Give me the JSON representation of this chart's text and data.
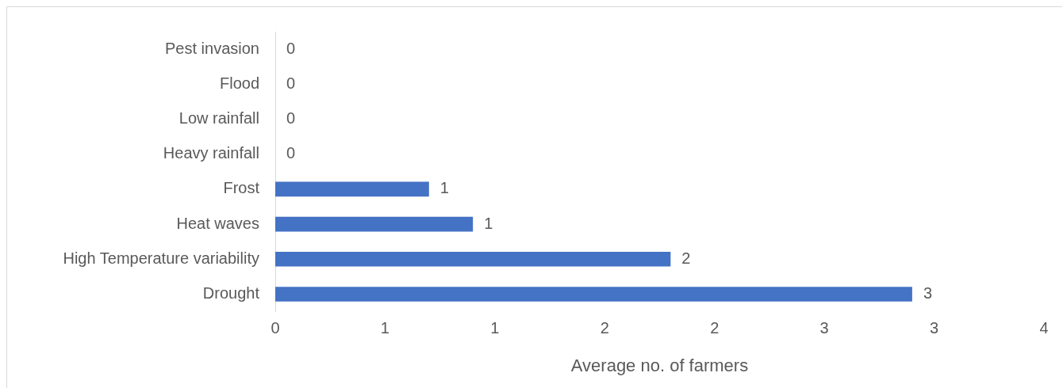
{
  "chart_data": {
    "type": "bar",
    "orientation": "horizontal",
    "xlabel": "Average no. of farmers",
    "categories": [
      "Pest invasion",
      "Flood",
      "Low rainfall",
      "Heavy rainfall",
      "Frost",
      "Heat waves",
      "High Temperature variability",
      "Drought"
    ],
    "values": [
      0,
      0,
      0,
      0,
      0.7,
      0.9,
      1.8,
      2.9
    ],
    "value_labels": [
      "0",
      "0",
      "0",
      "0",
      "1",
      "1",
      "2",
      "3"
    ],
    "color": "#4472c4",
    "xlim": [
      0,
      3.5
    ],
    "xticks": [
      0,
      {
        "value": 0.5,
        "label": "1"
      },
      1,
      {
        "value": 1.5,
        "label": "2"
      },
      2,
      {
        "value": 2.5,
        "label": "3"
      },
      3,
      {
        "value": 3.5,
        "label": "4"
      }
    ],
    "grid": false,
    "legend": false
  }
}
